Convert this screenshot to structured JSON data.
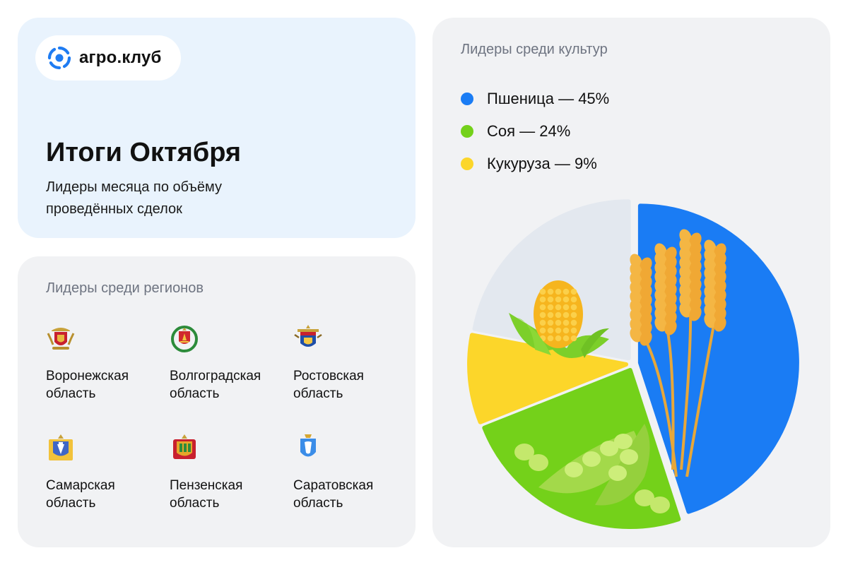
{
  "brand": {
    "name": "агро.клуб",
    "logo_color": "#1f7cf2"
  },
  "intro": {
    "title": "Итоги Октября",
    "subtitle": "Лидеры месяца по объёму проведённых сделок"
  },
  "regions": {
    "title": "Лидеры среди регионов",
    "items": [
      {
        "name_line1": "Воронежская",
        "name_line2": "область",
        "icon": "voronezh-coat-of-arms-icon"
      },
      {
        "name_line1": "Волгоградская",
        "name_line2": "область",
        "icon": "volgograd-coat-of-arms-icon"
      },
      {
        "name_line1": "Ростовская",
        "name_line2": "область",
        "icon": "rostov-coat-of-arms-icon"
      },
      {
        "name_line1": "Самарская",
        "name_line2": "область",
        "icon": "samara-coat-of-arms-icon"
      },
      {
        "name_line1": "Пензенская",
        "name_line2": "область",
        "icon": "penza-coat-of-arms-icon"
      },
      {
        "name_line1": "Саратовская",
        "name_line2": "область",
        "icon": "saratov-coat-of-arms-icon"
      }
    ]
  },
  "crops": {
    "title": "Лидеры среди культур"
  },
  "chart_data": {
    "type": "pie",
    "title": "Лидеры среди культур",
    "legend_position": "top-left",
    "slices": [
      {
        "label": "Пшеница — 45%",
        "name": "Пшеница",
        "value": 45,
        "color": "#1a7cf4",
        "icon": "wheat-icon"
      },
      {
        "label": "Соя — 24%",
        "name": "Соя",
        "value": 24,
        "color": "#74d11a",
        "icon": "soybean-icon"
      },
      {
        "label": "Кукуруза — 9%",
        "name": "Кукуруза",
        "value": 9,
        "color": "#fcd62a",
        "icon": "corn-icon"
      },
      {
        "label": "",
        "name": "",
        "value": 22,
        "color": "#e3e8ef"
      }
    ]
  }
}
